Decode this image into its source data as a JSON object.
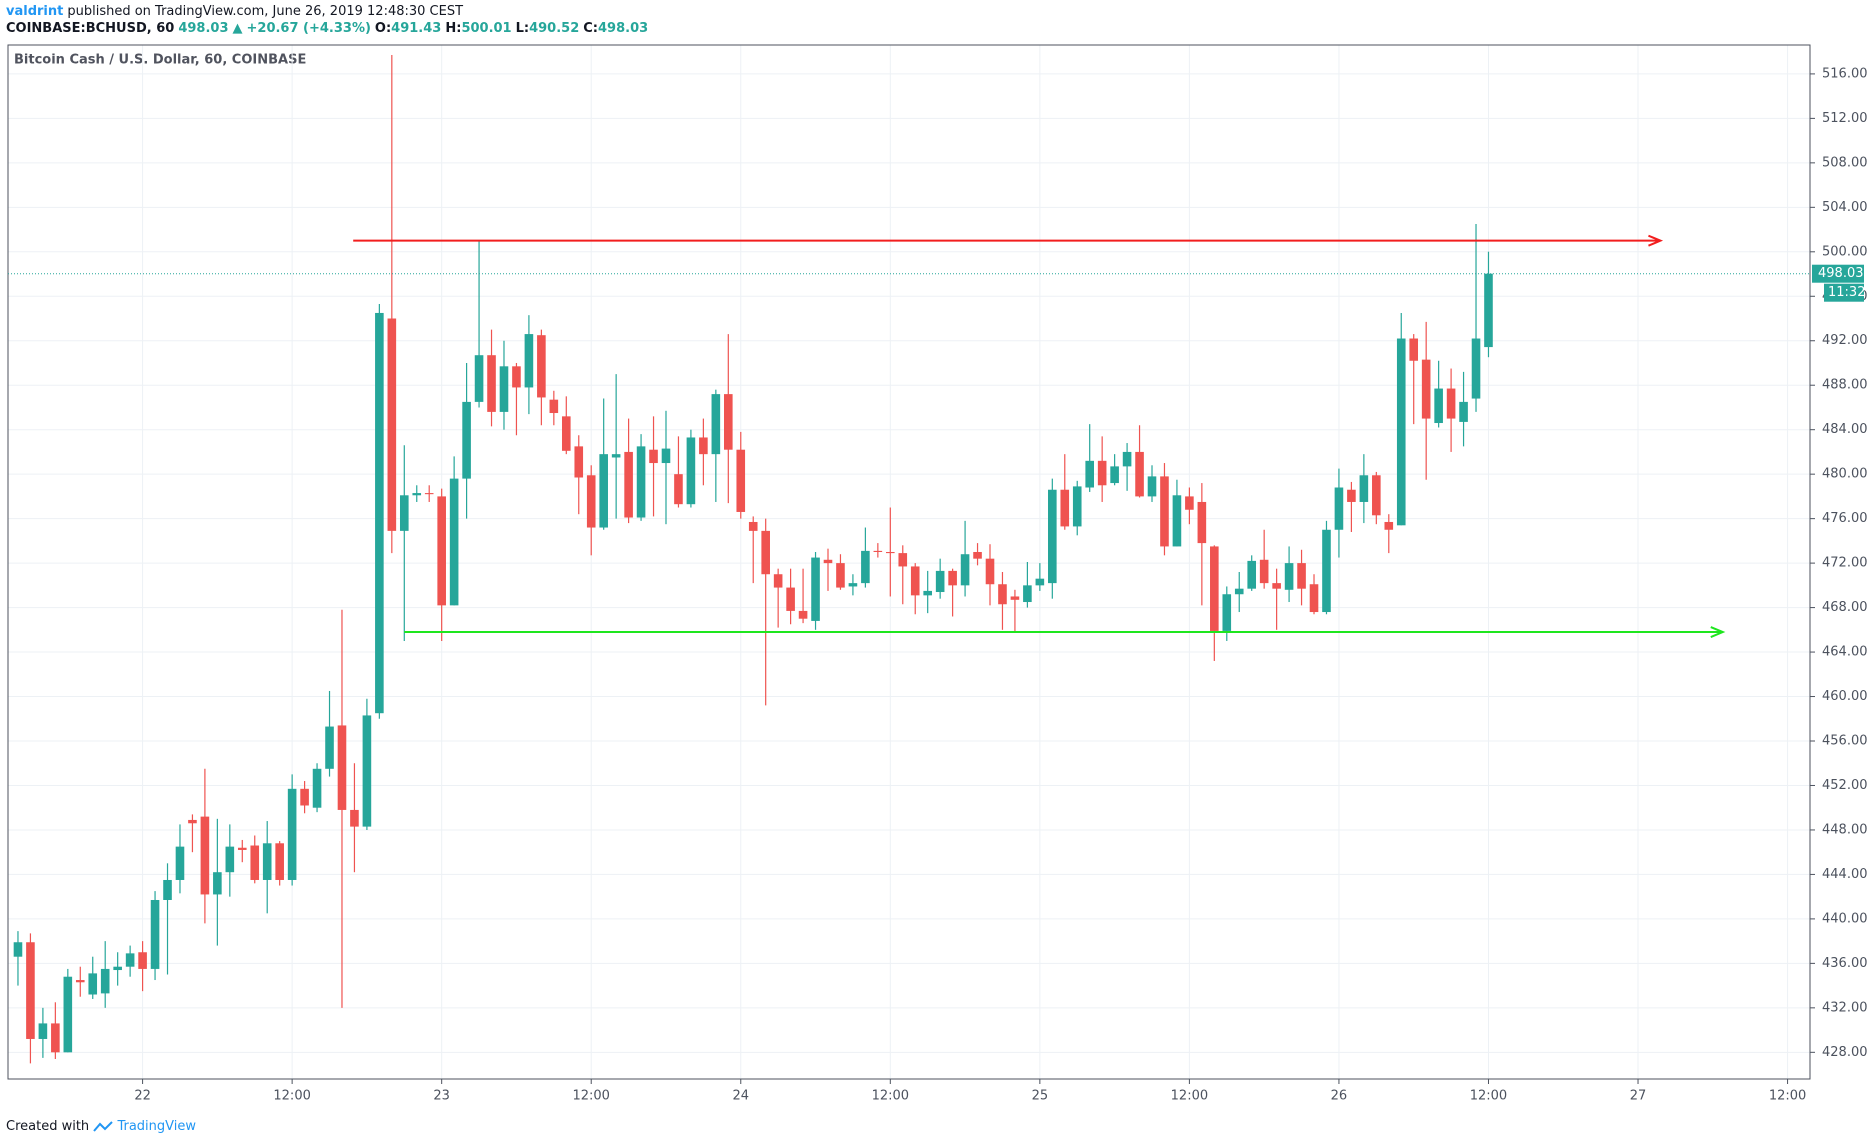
{
  "header": {
    "author": "valdrint",
    "published": "published on TradingView.com, June 26, 2019 12:48:30 CEST",
    "symbol": "COINBASE:BCHUSD, 60",
    "last": "498.03",
    "change": "+20.67 (+4.33%)",
    "ohlc": [
      {
        "label": "O:",
        "value": "491.43"
      },
      {
        "label": "H:",
        "value": "500.01"
      },
      {
        "label": "L:",
        "value": "490.52"
      },
      {
        "label": "C:",
        "value": "498.03"
      }
    ]
  },
  "footer": {
    "created": "Created with",
    "brand": "TradingView"
  },
  "chart_data": {
    "type": "candlestick",
    "title": "Bitcoin Cash / U.S. Dollar, 60, COINBASE",
    "up_color": "#26a69a",
    "down_color": "#ef5350",
    "grid": true,
    "countdown": "11:32",
    "x": [
      -10,
      -9,
      -8,
      -7,
      -6,
      -5,
      -4,
      -3,
      -2,
      -1,
      0,
      1,
      2,
      3,
      4,
      5,
      6,
      7,
      8,
      9,
      10,
      11,
      12,
      13,
      14,
      15,
      16,
      17,
      18,
      19,
      20,
      21,
      22,
      23,
      24,
      25,
      26,
      27,
      28,
      29,
      30,
      31,
      32,
      33,
      34,
      35,
      36,
      37,
      38,
      39,
      40,
      41,
      42,
      43,
      44,
      45,
      46,
      47,
      48,
      49,
      50,
      51,
      52,
      53,
      54,
      55,
      56,
      57,
      58,
      59,
      60,
      61,
      62,
      63,
      64,
      65,
      66,
      67,
      68,
      69,
      70,
      71,
      72,
      73,
      74,
      75,
      76,
      77,
      78,
      79,
      80,
      81,
      82,
      83,
      84,
      85,
      86,
      87,
      88,
      89,
      90,
      91,
      92,
      93,
      94,
      95,
      96,
      97,
      98,
      99,
      100,
      101,
      102,
      103,
      104,
      105,
      106,
      107,
      108
    ],
    "open": [
      436.6,
      437.9,
      429.2,
      430.6,
      428.0,
      434.5,
      433.2,
      433.3,
      435.4,
      435.7,
      437.0,
      435.5,
      441.7,
      443.5,
      448.9,
      449.2,
      442.2,
      444.2,
      446.4,
      446.6,
      443.5,
      446.8,
      443.5,
      451.7,
      450.0,
      453.5,
      457.4,
      449.8,
      448.3,
      458.5,
      494.0,
      474.9,
      478.1,
      478.3,
      478.0,
      468.2,
      479.6,
      486.5,
      490.7,
      485.6,
      489.7,
      487.8,
      492.5,
      486.7,
      485.2,
      482.5,
      479.9,
      475.2,
      481.5,
      482.0,
      476.1,
      482.2,
      481.0,
      480.0,
      477.3,
      483.3,
      481.8,
      487.2,
      482.2,
      475.7,
      474.9,
      471.0,
      469.8,
      467.7,
      466.8,
      472.3,
      472.0,
      469.9,
      470.2,
      473.1,
      473.0,
      472.9,
      471.7,
      469.1,
      469.4,
      471.3,
      470.0,
      473.0,
      472.4,
      470.1,
      469.0,
      468.5,
      470.0,
      470.2,
      478.6,
      475.3,
      478.8,
      481.2,
      479.2,
      480.7,
      482.0,
      478.0,
      479.8,
      473.5,
      478.0,
      477.5,
      473.5,
      465.9,
      469.2,
      469.7,
      472.3,
      470.2,
      469.6,
      472.0,
      470.1,
      467.6,
      475.0,
      478.6,
      477.5,
      479.9,
      475.7,
      475.4,
      492.2,
      490.3,
      484.6,
      487.7,
      484.7,
      486.8,
      491.43
    ],
    "high": [
      438.9,
      438.7,
      432.0,
      432.5,
      435.5,
      435.7,
      436.6,
      438.0,
      437.0,
      437.6,
      438.0,
      442.5,
      445.0,
      448.5,
      449.4,
      453.5,
      449.0,
      448.5,
      447.1,
      447.5,
      448.8,
      447.0,
      453.0,
      452.4,
      454.0,
      460.5,
      467.8,
      454.0,
      459.8,
      495.3,
      517.7,
      482.6,
      479.0,
      479.0,
      478.7,
      481.6,
      490.0,
      501.0,
      493.0,
      492.0,
      490.0,
      494.3,
      493.0,
      487.5,
      487.0,
      483.5,
      480.8,
      486.8,
      489.0,
      485.0,
      483.6,
      485.2,
      485.7,
      483.4,
      484.0,
      485.0,
      487.6,
      492.6,
      483.8,
      476.2,
      476.0,
      471.5,
      471.5,
      471.5,
      473.0,
      473.3,
      472.8,
      471.0,
      475.2,
      473.8,
      477.0,
      473.6,
      472.0,
      471.3,
      472.4,
      471.5,
      475.8,
      473.8,
      473.7,
      471.2,
      469.6,
      472.1,
      472.0,
      479.6,
      481.8,
      479.4,
      484.5,
      483.4,
      481.8,
      482.8,
      484.4,
      480.8,
      481.0,
      479.5,
      478.8,
      479.2,
      473.6,
      469.9,
      471.2,
      472.7,
      475.0,
      471.5,
      473.5,
      473.2,
      471.0,
      475.8,
      480.5,
      479.3,
      481.8,
      480.2,
      476.4,
      494.5,
      492.6,
      493.7,
      490.2,
      489.5,
      489.2,
      502.5,
      500.01
    ],
    "low": [
      434.0,
      427.0,
      427.5,
      427.4,
      428.0,
      433.0,
      432.8,
      432.0,
      434.0,
      434.8,
      433.5,
      434.5,
      435.0,
      442.3,
      446.0,
      439.6,
      437.6,
      442.0,
      445.1,
      443.2,
      440.5,
      443.0,
      443.0,
      449.5,
      449.6,
      452.8,
      432.0,
      444.2,
      448.0,
      458.0,
      472.9,
      465.0,
      477.5,
      477.5,
      465.0,
      468.2,
      476.0,
      486.0,
      484.3,
      484.0,
      483.5,
      485.4,
      484.4,
      484.4,
      481.8,
      476.4,
      472.7,
      475.0,
      476.0,
      475.6,
      475.8,
      476.2,
      475.5,
      477.0,
      477.0,
      479.0,
      477.5,
      477.4,
      476.0,
      470.2,
      459.2,
      466.2,
      466.5,
      466.6,
      466.0,
      469.5,
      469.6,
      469.1,
      469.8,
      472.5,
      469.0,
      468.3,
      467.4,
      467.5,
      468.8,
      467.2,
      469.0,
      471.8,
      468.2,
      466.0,
      465.8,
      468.0,
      469.5,
      468.8,
      475.0,
      474.5,
      478.4,
      477.5,
      479.0,
      478.5,
      477.9,
      477.5,
      472.7,
      473.5,
      475.5,
      468.2,
      463.2,
      465.0,
      467.6,
      469.5,
      469.7,
      466.0,
      468.5,
      468.2,
      467.4,
      467.4,
      472.5,
      474.8,
      475.6,
      475.5,
      472.9,
      475.4,
      484.5,
      479.5,
      484.2,
      482.0,
      482.5,
      485.6,
      490.52
    ],
    "close": [
      437.9,
      429.2,
      430.6,
      428.0,
      434.8,
      434.3,
      435.1,
      435.5,
      435.7,
      436.9,
      435.5,
      441.7,
      443.5,
      446.5,
      448.6,
      442.2,
      444.2,
      446.5,
      446.2,
      443.5,
      446.8,
      443.5,
      451.7,
      450.2,
      453.5,
      457.3,
      449.8,
      448.3,
      458.3,
      494.5,
      474.9,
      478.1,
      478.3,
      478.2,
      468.2,
      479.6,
      486.5,
      490.7,
      485.6,
      489.7,
      487.8,
      492.6,
      486.9,
      485.5,
      482.1,
      479.7,
      475.2,
      481.8,
      481.8,
      476.1,
      482.5,
      481.0,
      482.3,
      477.3,
      483.3,
      481.8,
      487.2,
      482.2,
      476.6,
      474.9,
      471.0,
      469.8,
      467.7,
      467.0,
      472.5,
      472.0,
      469.8,
      470.2,
      473.1,
      473.0,
      472.9,
      471.7,
      469.1,
      469.5,
      471.3,
      470.0,
      472.8,
      472.4,
      470.1,
      468.3,
      468.7,
      470.0,
      470.6,
      478.6,
      475.3,
      478.9,
      481.2,
      479.0,
      480.7,
      482.0,
      478.0,
      479.8,
      473.5,
      478.1,
      476.8,
      473.8,
      465.9,
      469.2,
      469.7,
      472.2,
      470.2,
      469.7,
      472.0,
      469.7,
      467.6,
      475.0,
      478.8,
      477.5,
      479.9,
      476.3,
      475.0,
      492.2,
      490.2,
      485.0,
      487.7,
      485.0,
      486.5,
      492.2,
      498.03
    ],
    "levels": [
      {
        "y": 501.0,
        "x": [
          16.9,
          121.8
        ],
        "color": "#f21e1e"
      },
      {
        "y": 465.8,
        "x": [
          21.0,
          126.8
        ],
        "color": "#1ee61e"
      }
    ],
    "xlim": [
      -10.8,
      133.8
    ],
    "ylim": [
      425.6,
      518.6
    ],
    "xticks": [
      {
        "value": 0,
        "label": "22"
      },
      {
        "value": 12,
        "label": "12:00"
      },
      {
        "value": 24,
        "label": "23"
      },
      {
        "value": 36,
        "label": "12:00"
      },
      {
        "value": 48,
        "label": "24"
      },
      {
        "value": 60,
        "label": "12:00"
      },
      {
        "value": 72,
        "label": "25"
      },
      {
        "value": 84,
        "label": "12:00"
      },
      {
        "value": 96,
        "label": "26"
      },
      {
        "value": 108,
        "label": "12:00"
      },
      {
        "value": 120,
        "label": "27"
      },
      {
        "value": 132,
        "label": "12:00"
      }
    ],
    "yticks": [
      {
        "value": 428,
        "label": "428.00"
      },
      {
        "value": 432,
        "label": "432.00"
      },
      {
        "value": 436,
        "label": "436.00"
      },
      {
        "value": 440,
        "label": "440.00"
      },
      {
        "value": 444,
        "label": "444.00"
      },
      {
        "value": 448,
        "label": "448.00"
      },
      {
        "value": 452,
        "label": "452.00"
      },
      {
        "value": 456,
        "label": "456.00"
      },
      {
        "value": 460,
        "label": "460.00"
      },
      {
        "value": 464,
        "label": "464.00"
      },
      {
        "value": 468,
        "label": "468.00"
      },
      {
        "value": 472,
        "label": "472.00"
      },
      {
        "value": 476,
        "label": "476.00"
      },
      {
        "value": 480,
        "label": "480.00"
      },
      {
        "value": 484,
        "label": "484.00"
      },
      {
        "value": 488,
        "label": "488.00"
      },
      {
        "value": 492,
        "label": "492.00"
      },
      {
        "value": 496,
        "label": "496.00"
      },
      {
        "value": 500,
        "label": "500.00"
      },
      {
        "value": 504,
        "label": "504.00"
      },
      {
        "value": 508,
        "label": "508.00"
      },
      {
        "value": 512,
        "label": "512.00"
      },
      {
        "value": 516,
        "label": "516.00"
      }
    ]
  }
}
